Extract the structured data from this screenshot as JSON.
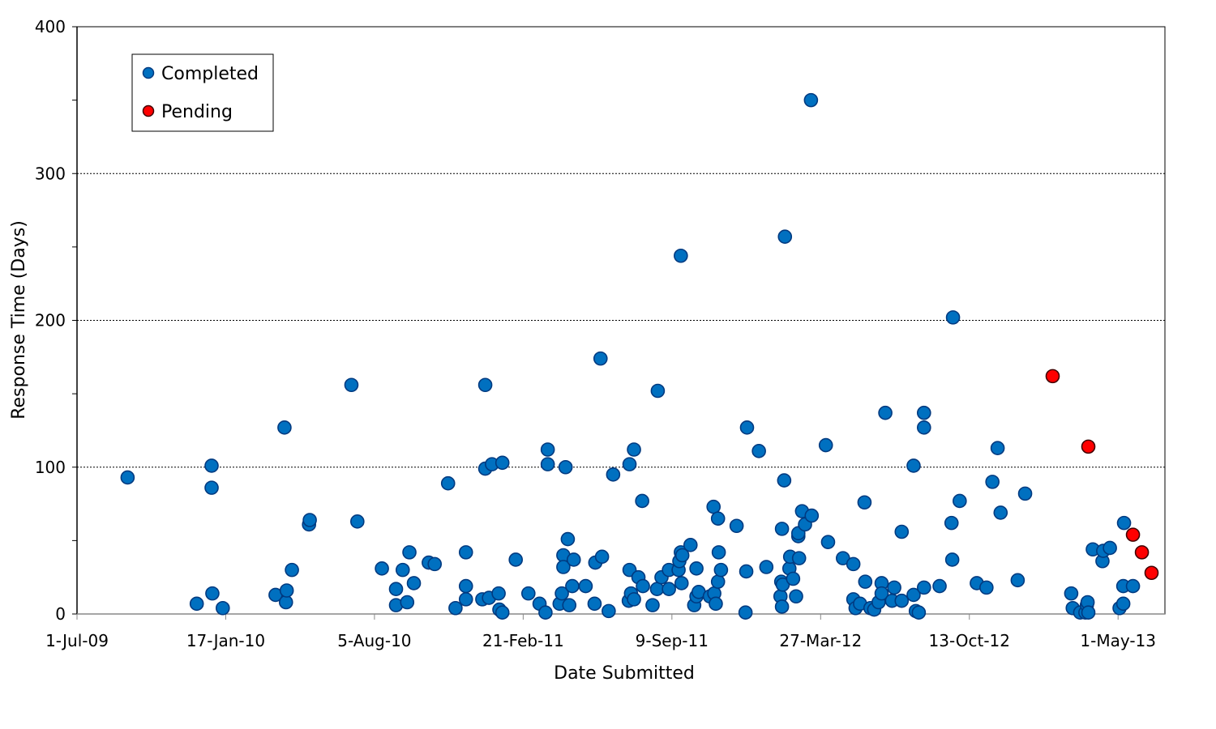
{
  "chart_data": {
    "type": "scatter",
    "title": "",
    "xlabel": "Date Submitted",
    "ylabel": "Response Time (Days)",
    "xlim": [
      0,
      1463
    ],
    "ylim": [
      0,
      400
    ],
    "x_ticks": [
      {
        "value": 0,
        "label": "1-Jul-09"
      },
      {
        "value": 200,
        "label": "17-Jan-10"
      },
      {
        "value": 400,
        "label": "5-Aug-10"
      },
      {
        "value": 600,
        "label": "21-Feb-11"
      },
      {
        "value": 800,
        "label": "9-Sep-11"
      },
      {
        "value": 1000,
        "label": "27-Mar-12"
      },
      {
        "value": 1200,
        "label": "13-Oct-12"
      },
      {
        "value": 1400,
        "label": "1-May-13"
      }
    ],
    "y_ticks": [
      {
        "value": 0,
        "label": "0"
      },
      {
        "value": 100,
        "label": "100"
      },
      {
        "value": 200,
        "label": "200"
      },
      {
        "value": 300,
        "label": "300"
      },
      {
        "value": 400,
        "label": "400"
      }
    ],
    "y_minor_ticks": [
      50,
      150,
      250,
      350
    ],
    "gridlines": [
      100,
      200,
      300
    ],
    "legend": {
      "placement": "top-left"
    },
    "series": [
      {
        "name": "Completed",
        "color": "#0070C0",
        "stroke": "#003A80",
        "points": [
          [
            68,
            93
          ],
          [
            161,
            7
          ],
          [
            181,
            101
          ],
          [
            181,
            86
          ],
          [
            182,
            14
          ],
          [
            196,
            4
          ],
          [
            267,
            13
          ],
          [
            279,
            127
          ],
          [
            281,
            8
          ],
          [
            282,
            16
          ],
          [
            289,
            30
          ],
          [
            312,
            61
          ],
          [
            313,
            64
          ],
          [
            369,
            156
          ],
          [
            377,
            63
          ],
          [
            410,
            31
          ],
          [
            429,
            6
          ],
          [
            429,
            17
          ],
          [
            438,
            30
          ],
          [
            444,
            8
          ],
          [
            447,
            42
          ],
          [
            453,
            21
          ],
          [
            473,
            35
          ],
          [
            481,
            34
          ],
          [
            499,
            89
          ],
          [
            509,
            4
          ],
          [
            523,
            10
          ],
          [
            523,
            19
          ],
          [
            523,
            42
          ],
          [
            545,
            10
          ],
          [
            549,
            156
          ],
          [
            549,
            99
          ],
          [
            554,
            11
          ],
          [
            558,
            102
          ],
          [
            567,
            14
          ],
          [
            568,
            3
          ],
          [
            572,
            103
          ],
          [
            572,
            1
          ],
          [
            590,
            37
          ],
          [
            607,
            14
          ],
          [
            622,
            7
          ],
          [
            630,
            1
          ],
          [
            633,
            112
          ],
          [
            633,
            102
          ],
          [
            649,
            7
          ],
          [
            652,
            14
          ],
          [
            654,
            40
          ],
          [
            654,
            32
          ],
          [
            657,
            100
          ],
          [
            660,
            51
          ],
          [
            662,
            6
          ],
          [
            666,
            19
          ],
          [
            668,
            37
          ],
          [
            684,
            19
          ],
          [
            696,
            7
          ],
          [
            697,
            35
          ],
          [
            704,
            174
          ],
          [
            706,
            39
          ],
          [
            715,
            2
          ],
          [
            721,
            95
          ],
          [
            742,
            9
          ],
          [
            743,
            102
          ],
          [
            743,
            30
          ],
          [
            745,
            14
          ],
          [
            749,
            10
          ],
          [
            749,
            112
          ],
          [
            755,
            25
          ],
          [
            760,
            77
          ],
          [
            761,
            19
          ],
          [
            774,
            6
          ],
          [
            780,
            17
          ],
          [
            781,
            152
          ],
          [
            786,
            25
          ],
          [
            796,
            30
          ],
          [
            796,
            17
          ],
          [
            809,
            30
          ],
          [
            810,
            36
          ],
          [
            812,
            244
          ],
          [
            812,
            42
          ],
          [
            813,
            21
          ],
          [
            814,
            40
          ],
          [
            825,
            47
          ],
          [
            830,
            6
          ],
          [
            833,
            31
          ],
          [
            833,
            12
          ],
          [
            836,
            15
          ],
          [
            851,
            12
          ],
          [
            856,
            73
          ],
          [
            857,
            14
          ],
          [
            859,
            7
          ],
          [
            862,
            65
          ],
          [
            862,
            22
          ],
          [
            863,
            42
          ],
          [
            866,
            30
          ],
          [
            887,
            60
          ],
          [
            899,
            1
          ],
          [
            900,
            29
          ],
          [
            901,
            127
          ],
          [
            917,
            111
          ],
          [
            927,
            32
          ],
          [
            946,
            12
          ],
          [
            947,
            22
          ],
          [
            948,
            58
          ],
          [
            948,
            5
          ],
          [
            949,
            20
          ],
          [
            951,
            91
          ],
          [
            952,
            257
          ],
          [
            958,
            31
          ],
          [
            959,
            39
          ],
          [
            963,
            24
          ],
          [
            967,
            12
          ],
          [
            970,
            53
          ],
          [
            970,
            55
          ],
          [
            971,
            38
          ],
          [
            975,
            70
          ],
          [
            979,
            61
          ],
          [
            987,
            350
          ],
          [
            988,
            67
          ],
          [
            1007,
            115
          ],
          [
            1010,
            49
          ],
          [
            1030,
            38
          ],
          [
            1044,
            34
          ],
          [
            1044,
            10
          ],
          [
            1047,
            4
          ],
          [
            1053,
            7
          ],
          [
            1059,
            76
          ],
          [
            1060,
            22
          ],
          [
            1067,
            4
          ],
          [
            1072,
            3
          ],
          [
            1078,
            8
          ],
          [
            1082,
            21
          ],
          [
            1082,
            14
          ],
          [
            1087,
            137
          ],
          [
            1096,
            9
          ],
          [
            1099,
            18
          ],
          [
            1109,
            56
          ],
          [
            1109,
            9
          ],
          [
            1125,
            101
          ],
          [
            1125,
            13
          ],
          [
            1128,
            2
          ],
          [
            1132,
            1
          ],
          [
            1139,
            137
          ],
          [
            1139,
            127
          ],
          [
            1139,
            18
          ],
          [
            1160,
            19
          ],
          [
            1176,
            62
          ],
          [
            1177,
            37
          ],
          [
            1178,
            202
          ],
          [
            1187,
            77
          ],
          [
            1210,
            21
          ],
          [
            1223,
            18
          ],
          [
            1231,
            90
          ],
          [
            1238,
            113
          ],
          [
            1242,
            69
          ],
          [
            1265,
            23
          ],
          [
            1275,
            82
          ],
          [
            1337,
            14
          ],
          [
            1339,
            4
          ],
          [
            1349,
            1
          ],
          [
            1356,
            1
          ],
          [
            1358,
            6
          ],
          [
            1359,
            8
          ],
          [
            1360,
            1
          ],
          [
            1366,
            44
          ],
          [
            1379,
            36
          ],
          [
            1380,
            43
          ],
          [
            1389,
            45
          ],
          [
            1402,
            4
          ],
          [
            1407,
            7
          ],
          [
            1407,
            19
          ],
          [
            1408,
            62
          ],
          [
            1420,
            19
          ]
        ]
      },
      {
        "name": "Pending",
        "color": "#FF0000",
        "stroke": "#400000",
        "points": [
          [
            1312,
            162
          ],
          [
            1360,
            114
          ],
          [
            1420,
            54
          ],
          [
            1432,
            42
          ],
          [
            1445,
            28
          ]
        ]
      }
    ]
  }
}
